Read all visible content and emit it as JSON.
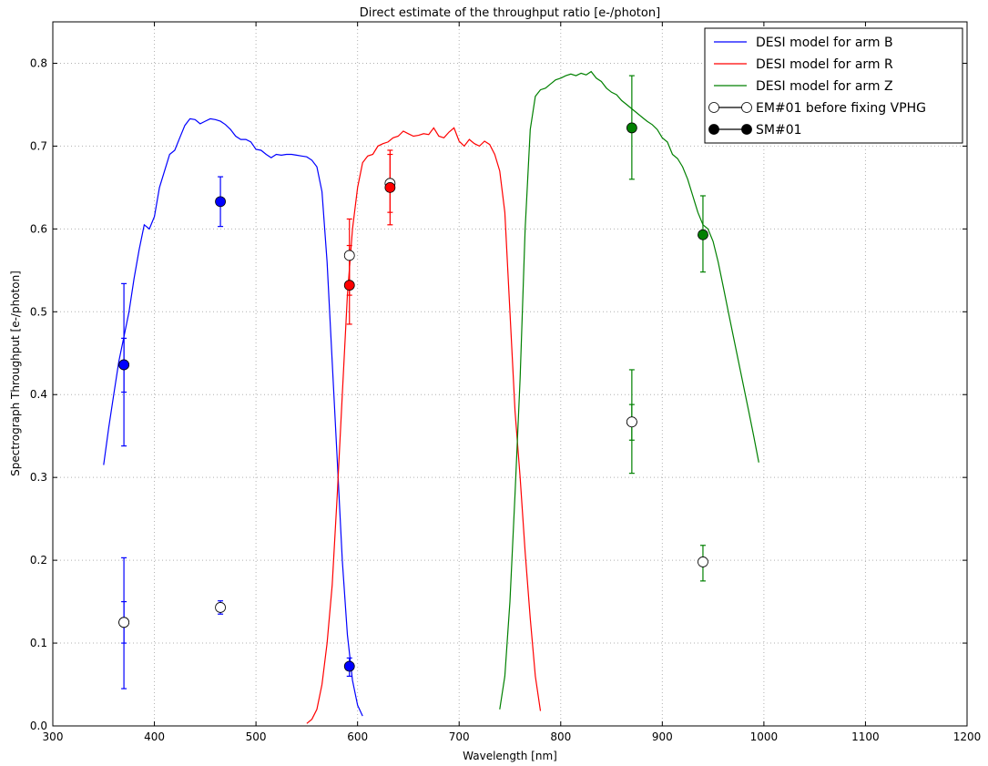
{
  "chart_data": {
    "type": "line",
    "title": "Direct estimate of the throughput ratio [e-/photon]",
    "xlabel": "Wavelength [nm]",
    "ylabel": "Spectrograph Throughput [e-/photon]",
    "xlim": [
      300,
      1200
    ],
    "ylim": [
      0.0,
      0.85
    ],
    "xticks": [
      300,
      400,
      500,
      600,
      700,
      800,
      900,
      1000,
      1100,
      1200
    ],
    "yticks": [
      0.0,
      0.1,
      0.2,
      0.3,
      0.4,
      0.5,
      0.6,
      0.7,
      0.8
    ],
    "grid": true,
    "legend_position": "top-right",
    "series": [
      {
        "name": "DESI model for arm B",
        "kind": "line",
        "color": "#0000ff",
        "points": [
          [
            350,
            0.315
          ],
          [
            355,
            0.36
          ],
          [
            360,
            0.4
          ],
          [
            365,
            0.44
          ],
          [
            370,
            0.47
          ],
          [
            375,
            0.5
          ],
          [
            380,
            0.54
          ],
          [
            385,
            0.575
          ],
          [
            390,
            0.605
          ],
          [
            395,
            0.6
          ],
          [
            400,
            0.615
          ],
          [
            405,
            0.65
          ],
          [
            410,
            0.67
          ],
          [
            415,
            0.69
          ],
          [
            420,
            0.695
          ],
          [
            425,
            0.71
          ],
          [
            430,
            0.725
          ],
          [
            435,
            0.733
          ],
          [
            440,
            0.732
          ],
          [
            445,
            0.727
          ],
          [
            450,
            0.73
          ],
          [
            455,
            0.733
          ],
          [
            460,
            0.732
          ],
          [
            465,
            0.73
          ],
          [
            470,
            0.726
          ],
          [
            475,
            0.72
          ],
          [
            480,
            0.712
          ],
          [
            485,
            0.708
          ],
          [
            490,
            0.708
          ],
          [
            495,
            0.705
          ],
          [
            500,
            0.696
          ],
          [
            505,
            0.695
          ],
          [
            510,
            0.69
          ],
          [
            515,
            0.686
          ],
          [
            520,
            0.69
          ],
          [
            525,
            0.689
          ],
          [
            530,
            0.69
          ],
          [
            535,
            0.69
          ],
          [
            540,
            0.689
          ],
          [
            545,
            0.688
          ],
          [
            550,
            0.687
          ],
          [
            555,
            0.683
          ],
          [
            560,
            0.675
          ],
          [
            565,
            0.645
          ],
          [
            570,
            0.56
          ],
          [
            575,
            0.44
          ],
          [
            580,
            0.32
          ],
          [
            585,
            0.2
          ],
          [
            590,
            0.11
          ],
          [
            595,
            0.055
          ],
          [
            600,
            0.025
          ],
          [
            605,
            0.012
          ]
        ]
      },
      {
        "name": "DESI model for arm R",
        "kind": "line",
        "color": "#ff0000",
        "points": [
          [
            550,
            0.003
          ],
          [
            555,
            0.008
          ],
          [
            560,
            0.02
          ],
          [
            565,
            0.05
          ],
          [
            570,
            0.1
          ],
          [
            575,
            0.17
          ],
          [
            580,
            0.28
          ],
          [
            585,
            0.4
          ],
          [
            590,
            0.52
          ],
          [
            595,
            0.6
          ],
          [
            600,
            0.65
          ],
          [
            605,
            0.68
          ],
          [
            610,
            0.688
          ],
          [
            615,
            0.69
          ],
          [
            620,
            0.7
          ],
          [
            625,
            0.703
          ],
          [
            630,
            0.705
          ],
          [
            635,
            0.71
          ],
          [
            640,
            0.712
          ],
          [
            645,
            0.718
          ],
          [
            650,
            0.715
          ],
          [
            655,
            0.712
          ],
          [
            660,
            0.713
          ],
          [
            665,
            0.715
          ],
          [
            670,
            0.714
          ],
          [
            675,
            0.722
          ],
          [
            680,
            0.712
          ],
          [
            685,
            0.71
          ],
          [
            690,
            0.717
          ],
          [
            695,
            0.722
          ],
          [
            700,
            0.706
          ],
          [
            705,
            0.7
          ],
          [
            710,
            0.708
          ],
          [
            715,
            0.703
          ],
          [
            720,
            0.7
          ],
          [
            725,
            0.706
          ],
          [
            730,
            0.702
          ],
          [
            735,
            0.69
          ],
          [
            740,
            0.67
          ],
          [
            745,
            0.62
          ],
          [
            750,
            0.5
          ],
          [
            755,
            0.38
          ],
          [
            760,
            0.3
          ],
          [
            765,
            0.21
          ],
          [
            770,
            0.13
          ],
          [
            775,
            0.06
          ],
          [
            780,
            0.018
          ]
        ]
      },
      {
        "name": "DESI model for arm Z",
        "kind": "line",
        "color": "#008000",
        "points": [
          [
            740,
            0.02
          ],
          [
            745,
            0.06
          ],
          [
            750,
            0.15
          ],
          [
            755,
            0.28
          ],
          [
            760,
            0.42
          ],
          [
            765,
            0.6
          ],
          [
            770,
            0.72
          ],
          [
            775,
            0.76
          ],
          [
            780,
            0.768
          ],
          [
            785,
            0.77
          ],
          [
            790,
            0.775
          ],
          [
            795,
            0.78
          ],
          [
            800,
            0.782
          ],
          [
            805,
            0.785
          ],
          [
            810,
            0.787
          ],
          [
            815,
            0.785
          ],
          [
            820,
            0.788
          ],
          [
            825,
            0.786
          ],
          [
            830,
            0.79
          ],
          [
            835,
            0.782
          ],
          [
            840,
            0.778
          ],
          [
            845,
            0.77
          ],
          [
            850,
            0.765
          ],
          [
            855,
            0.762
          ],
          [
            860,
            0.755
          ],
          [
            865,
            0.75
          ],
          [
            870,
            0.745
          ],
          [
            875,
            0.74
          ],
          [
            880,
            0.735
          ],
          [
            885,
            0.73
          ],
          [
            890,
            0.726
          ],
          [
            895,
            0.72
          ],
          [
            900,
            0.71
          ],
          [
            905,
            0.705
          ],
          [
            910,
            0.69
          ],
          [
            915,
            0.685
          ],
          [
            920,
            0.675
          ],
          [
            925,
            0.66
          ],
          [
            930,
            0.64
          ],
          [
            935,
            0.62
          ],
          [
            940,
            0.605
          ],
          [
            945,
            0.6
          ],
          [
            950,
            0.585
          ],
          [
            955,
            0.56
          ],
          [
            960,
            0.53
          ],
          [
            965,
            0.5
          ],
          [
            970,
            0.47
          ],
          [
            975,
            0.44
          ],
          [
            980,
            0.41
          ],
          [
            985,
            0.38
          ],
          [
            990,
            0.35
          ],
          [
            995,
            0.318
          ]
        ]
      },
      {
        "name": "EM#01 before fixing VPHG",
        "kind": "points",
        "marker": "open",
        "points": [
          {
            "x": 370,
            "y": 0.125,
            "err": [
              0.1,
              0.15
            ],
            "color": "#0000ff"
          },
          {
            "x": 370,
            "y": 0.125,
            "err": [
              0.045,
              0.203
            ],
            "color": "#0000ff"
          },
          {
            "x": 465,
            "y": 0.143,
            "err": [
              0.135,
              0.151
            ],
            "color": "#0000ff"
          },
          {
            "x": 592,
            "y": 0.568,
            "err": [
              0.52,
              0.612
            ],
            "color": "#ff0000"
          },
          {
            "x": 632,
            "y": 0.655,
            "err": [
              0.62,
              0.69
            ],
            "color": "#ff0000"
          },
          {
            "x": 870,
            "y": 0.367,
            "err": [
              0.345,
              0.388
            ],
            "color": "#008000"
          },
          {
            "x": 870,
            "y": 0.367,
            "err": [
              0.305,
              0.43
            ],
            "color": "#008000"
          },
          {
            "x": 940,
            "y": 0.198,
            "err": [
              0.175,
              0.218
            ],
            "color": "#008000"
          }
        ]
      },
      {
        "name": "SM#01",
        "kind": "points",
        "marker": "filled",
        "points": [
          {
            "x": 370,
            "y": 0.436,
            "err": [
              0.403,
              0.468
            ],
            "color": "#0000ff"
          },
          {
            "x": 370,
            "y": 0.436,
            "err": [
              0.338,
              0.534
            ],
            "color": "#0000ff"
          },
          {
            "x": 465,
            "y": 0.633,
            "err": [
              0.603,
              0.663
            ],
            "color": "#0000ff"
          },
          {
            "x": 592,
            "y": 0.072,
            "err": [
              0.06,
              0.082
            ],
            "color": "#0000ff"
          },
          {
            "x": 592,
            "y": 0.532,
            "err": [
              0.485,
              0.58
            ],
            "color": "#ff0000"
          },
          {
            "x": 632,
            "y": 0.65,
            "err": [
              0.605,
              0.695
            ],
            "color": "#ff0000"
          },
          {
            "x": 870,
            "y": 0.722,
            "err": [
              0.66,
              0.785
            ],
            "color": "#008000"
          },
          {
            "x": 940,
            "y": 0.593,
            "err": [
              0.548,
              0.64
            ],
            "color": "#008000"
          }
        ]
      }
    ]
  }
}
